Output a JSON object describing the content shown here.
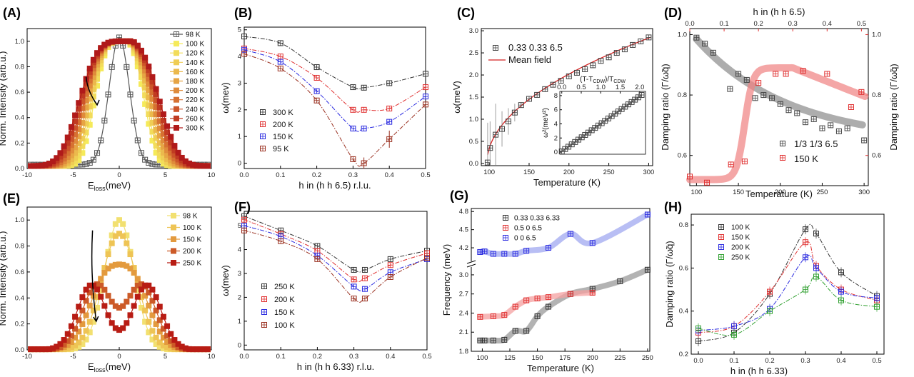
{
  "figure": {
    "panel_labels": [
      "(A)",
      "(B)",
      "(C)",
      "(D)",
      "(E)",
      "(F)",
      "(G)",
      "(H)"
    ]
  },
  "chart_data": [
    {
      "id": "A",
      "type": "line",
      "title": "",
      "xlabel_main": "E",
      "xlabel_sub": "loss",
      "xlabel_unit": "(meV)",
      "ylabel": "Norm. Intensity (arb.u.)",
      "xlim": [
        -10,
        10
      ],
      "ylim": [
        0,
        1.1
      ],
      "xticks": [
        -10,
        -5,
        0,
        5,
        10
      ],
      "yticks": [
        0.0,
        0.2,
        0.4,
        0.6,
        0.8,
        1.0
      ],
      "kind": "spectra",
      "series": [
        {
          "name": "98 K",
          "center": 0,
          "width": 1.2,
          "color": "#555555",
          "open": true
        },
        {
          "name": "100 K",
          "center": 0,
          "width": 3.0,
          "color": "#f5ea5a"
        },
        {
          "name": "120 K",
          "center": 0,
          "width": 3.2,
          "color": "#f2dc5a"
        },
        {
          "name": "140 K",
          "center": 0,
          "width": 3.4,
          "color": "#efcd55"
        },
        {
          "name": "160 K",
          "center": 0,
          "width": 3.6,
          "color": "#ebb94d"
        },
        {
          "name": "180 K",
          "center": 0,
          "width": 3.8,
          "color": "#e6a444"
        },
        {
          "name": "200 K",
          "center": 0,
          "width": 4.0,
          "color": "#df8b3b"
        },
        {
          "name": "220 K",
          "center": 0,
          "width": 4.2,
          "color": "#d67132"
        },
        {
          "name": "240 K",
          "center": 0,
          "width": 4.4,
          "color": "#cc552a"
        },
        {
          "name": "260 K",
          "center": 0,
          "width": 4.6,
          "color": "#c03b22"
        },
        {
          "name": "300 K",
          "center": 0,
          "width": 4.8,
          "color": "#b01a1a"
        }
      ]
    },
    {
      "id": "B",
      "type": "line",
      "xlabel": "h in (h h 6.5) r.l.u.",
      "ylabel": "ω(mev)",
      "xlim": [
        0,
        0.5
      ],
      "ylim": [
        -0.2,
        5.1
      ],
      "xticks": [
        0.0,
        0.1,
        0.2,
        0.3,
        0.4,
        0.5
      ],
      "yticks": [
        0,
        1,
        2,
        3,
        4,
        5
      ],
      "x": [
        0,
        0.1,
        0.2,
        0.3,
        0.33,
        0.4,
        0.5
      ],
      "series": [
        {
          "name": "300 K",
          "color": "#333333",
          "values": [
            4.75,
            4.5,
            3.6,
            2.85,
            2.83,
            3.0,
            3.35
          ]
        },
        {
          "name": "200 K",
          "color": "#e03030",
          "values": [
            4.3,
            4.0,
            3.2,
            2.0,
            2.0,
            2.05,
            2.85
          ]
        },
        {
          "name": "150 K",
          "color": "#2a2ae0",
          "values": [
            4.25,
            3.8,
            2.7,
            1.3,
            1.3,
            1.55,
            2.5
          ]
        },
        {
          "name": "95 K",
          "color": "#9a3020",
          "values": [
            4.1,
            3.55,
            2.35,
            0.15,
            0.0,
            0.9,
            2.2
          ]
        }
      ]
    },
    {
      "id": "C",
      "type": "scatter",
      "xlabel": "Temperature (K)",
      "ylabel": "ω(meV)",
      "xlim": [
        90,
        305
      ],
      "ylim": [
        -0.05,
        3.05
      ],
      "xticks": [
        100,
        150,
        200,
        250,
        300
      ],
      "yticks": [
        0.0,
        0.5,
        1.0,
        1.5,
        2.0,
        2.5,
        3.0
      ],
      "legend": [
        "0.33 0.33 6.5",
        "Mean field"
      ],
      "x": [
        98,
        101,
        108,
        116,
        124,
        132,
        140,
        150,
        160,
        170,
        180,
        190,
        200,
        210,
        220,
        230,
        240,
        250,
        260,
        270,
        280,
        290,
        300
      ],
      "values": [
        0.02,
        0.35,
        0.65,
        0.78,
        0.95,
        1.15,
        1.32,
        1.46,
        1.55,
        1.68,
        1.78,
        1.87,
        1.97,
        2.05,
        2.13,
        2.22,
        2.32,
        2.4,
        2.5,
        2.58,
        2.68,
        2.76,
        2.85
      ],
      "inset": {
        "xlabel": "(T-T",
        "xlabel_sub": "CDW",
        "xlabel_tail": ")/T",
        "xlabel_sub2": "CDW",
        "ylabel": "ω²(meV²)",
        "xticks": [
          0.0,
          0.5,
          1.0,
          1.5,
          2.0
        ],
        "yticks": [
          0,
          2,
          4,
          6,
          8
        ]
      }
    },
    {
      "id": "D",
      "type": "scatter",
      "xlabel": "Temperature (K)",
      "ylabel": "Damping ratio (Γ/ω̃q)",
      "top_xlabel": "h in (h h 6.5)",
      "right_ylabel": "Damping ratio (Γ/ω̃q)",
      "xlim": [
        92,
        305
      ],
      "ylim": [
        0.5,
        1.02
      ],
      "xticks": [
        100,
        150,
        200,
        250,
        300
      ],
      "yticks": [
        0.6,
        0.8,
        1.0
      ],
      "top_xlim": [
        0,
        0.52
      ],
      "top_xticks": [
        0.0,
        0.1,
        0.2,
        0.3,
        0.4,
        0.5
      ],
      "right_yticks": [
        0.6,
        0.8,
        1.0
      ],
      "series": [
        {
          "name": "1/3 1/3 6.5",
          "color": "#444444",
          "x": [
            100,
            110,
            120,
            140,
            150,
            160,
            170,
            180,
            190,
            200,
            210,
            220,
            230,
            240,
            250,
            260,
            270,
            280,
            300
          ],
          "values": [
            0.99,
            0.97,
            0.94,
            0.82,
            0.87,
            0.85,
            0.79,
            0.8,
            0.79,
            0.77,
            0.75,
            0.74,
            0.71,
            0.72,
            0.69,
            0.7,
            0.68,
            0.69,
            0.65
          ]
        },
        {
          "name": "150 K",
          "color": "#e03030",
          "x": [
            0.0,
            0.05,
            0.12,
            0.16,
            0.2,
            0.25,
            0.28,
            0.33,
            0.4,
            0.47,
            0.5
          ],
          "values": [
            0.53,
            0.51,
            0.57,
            0.58,
            0.84,
            0.87,
            0.87,
            0.88,
            0.87,
            0.76,
            0.81
          ]
        }
      ]
    },
    {
      "id": "E",
      "type": "line",
      "xlabel_main": "E",
      "xlabel_sub": "loss",
      "xlabel_unit": "(meV)",
      "ylabel": "Norm. Intensity (arb.u.)",
      "xlim": [
        -10,
        10
      ],
      "ylim": [
        0,
        1.1
      ],
      "xticks": [
        -10,
        -5,
        0,
        5,
        10
      ],
      "yticks": [
        0.0,
        0.2,
        0.4,
        0.6,
        0.8,
        1.0
      ],
      "kind": "spectra2",
      "series": [
        {
          "name": "98 K",
          "color": "#f2e070"
        },
        {
          "name": "100 K",
          "color": "#eec455"
        },
        {
          "name": "150 K",
          "color": "#e39a3e"
        },
        {
          "name": "200 K",
          "color": "#cc5a28"
        },
        {
          "name": "250 K",
          "color": "#b81c14"
        }
      ]
    },
    {
      "id": "F",
      "type": "line",
      "xlabel": "h in (h h 6.33) r.l.u.",
      "ylabel": "ω(mev)",
      "xlim": [
        0,
        0.5
      ],
      "ylim": [
        -0.2,
        5.6
      ],
      "xticks": [
        0.0,
        0.1,
        0.2,
        0.3,
        0.4,
        0.5
      ],
      "yticks": [
        0,
        1,
        2,
        3,
        4,
        5
      ],
      "x": [
        0,
        0.1,
        0.2,
        0.3,
        0.33,
        0.4,
        0.5
      ],
      "series": [
        {
          "name": "250 K",
          "color": "#333333",
          "values": [
            5.4,
            4.8,
            4.15,
            3.15,
            3.15,
            3.6,
            3.95
          ]
        },
        {
          "name": "200 K",
          "color": "#e03030",
          "values": [
            5.25,
            4.65,
            3.95,
            2.75,
            2.8,
            3.35,
            3.85
          ]
        },
        {
          "name": "150 K",
          "color": "#2a2ae0",
          "values": [
            5.0,
            4.55,
            3.75,
            2.45,
            2.35,
            3.05,
            3.6
          ]
        },
        {
          "name": "100 K",
          "color": "#9a3020",
          "values": [
            4.8,
            4.35,
            3.6,
            1.95,
            1.95,
            2.85,
            3.65
          ]
        }
      ]
    },
    {
      "id": "G",
      "type": "scatter",
      "xlabel": "Temperature (K)",
      "ylabel": "Frequency (meV)",
      "xlim": [
        90,
        252
      ],
      "xticks": [
        100,
        125,
        150,
        175,
        200,
        225,
        250
      ],
      "yticks_lower": [
        1.8,
        2.1,
        2.4,
        2.7,
        3.0
      ],
      "yticks_upper": [
        4.2,
        4.5,
        4.8
      ],
      "series": [
        {
          "name": "0.33 0.33 6.33",
          "color": "#333333",
          "x": [
            98,
            102,
            110,
            120,
            130,
            140,
            150,
            160,
            180,
            200,
            225,
            250
          ],
          "values": [
            1.97,
            1.97,
            1.97,
            1.98,
            2.12,
            2.12,
            2.35,
            2.5,
            2.7,
            2.78,
            2.9,
            3.08
          ]
        },
        {
          "name": "0.5 0 6.5",
          "color": "#e03030",
          "x": [
            98,
            110,
            120,
            130,
            140,
            150,
            160,
            180,
            200
          ],
          "values": [
            2.34,
            2.35,
            2.37,
            2.5,
            2.6,
            2.63,
            2.65,
            2.7,
            2.72
          ]
        },
        {
          "name": "0 0 6.5",
          "color": "#2a2ae0",
          "x": [
            98,
            102,
            110,
            120,
            130,
            140,
            160,
            180,
            200,
            250
          ],
          "values": [
            4.13,
            4.14,
            4.1,
            4.1,
            4.1,
            4.15,
            4.2,
            4.43,
            4.28,
            4.75
          ]
        }
      ]
    },
    {
      "id": "H",
      "type": "line",
      "xlabel": "h in (h h 6.33)",
      "ylabel": "Damping ratio (Γ/ω̃q)",
      "xlim": [
        -0.02,
        0.52
      ],
      "ylim": [
        0.2,
        0.85
      ],
      "xticks": [
        0.0,
        0.1,
        0.2,
        0.3,
        0.4,
        0.5
      ],
      "yticks": [
        0.2,
        0.4,
        0.6,
        0.8
      ],
      "x": [
        0,
        0.1,
        0.2,
        0.3,
        0.33,
        0.4,
        0.5
      ],
      "series": [
        {
          "name": "100 K",
          "color": "#333333",
          "values": [
            0.26,
            0.3,
            0.48,
            0.78,
            0.76,
            0.58,
            0.47
          ]
        },
        {
          "name": "150 K",
          "color": "#e03030",
          "values": [
            0.3,
            0.33,
            0.49,
            0.72,
            0.61,
            0.5,
            0.45
          ]
        },
        {
          "name": "200 K",
          "color": "#2a2ae0",
          "values": [
            0.31,
            0.33,
            0.41,
            0.65,
            0.6,
            0.49,
            0.46
          ]
        },
        {
          "name": "250 K",
          "color": "#30a030",
          "values": [
            0.32,
            0.29,
            0.4,
            0.5,
            0.56,
            0.45,
            0.42
          ]
        }
      ]
    }
  ]
}
